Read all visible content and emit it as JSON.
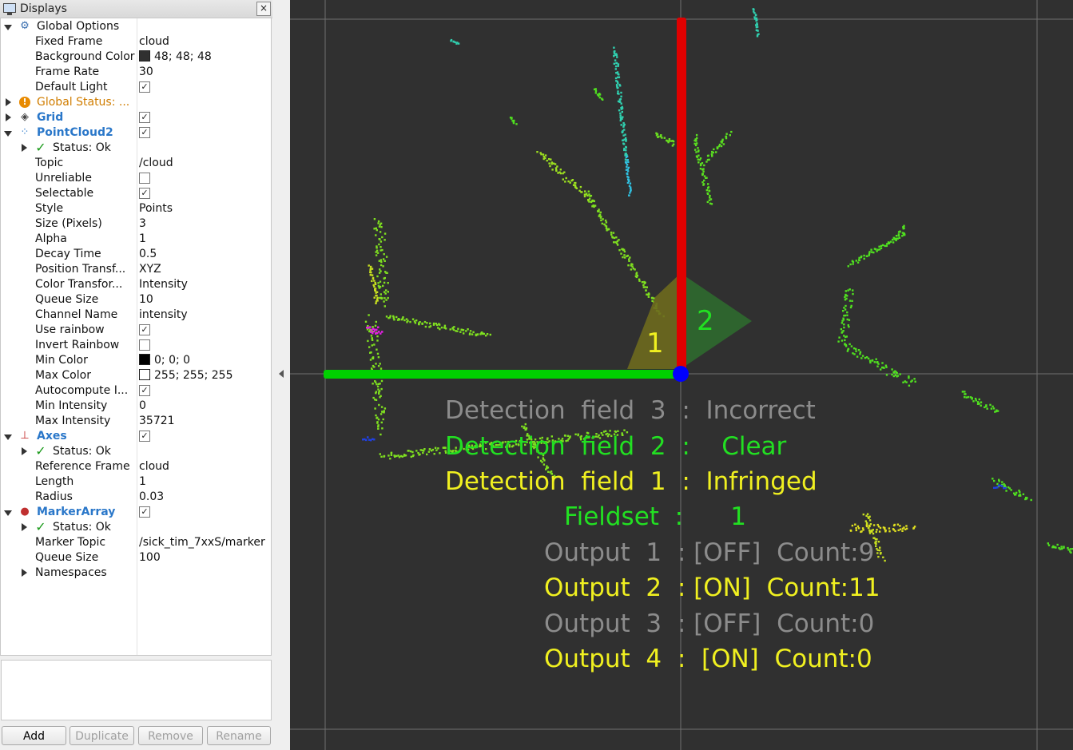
{
  "panel": {
    "title": "Displays",
    "close_glyph": "×",
    "rows": [
      {
        "depth": 0,
        "arrow": "open",
        "icon": "gear-icon",
        "label": "Global Options"
      },
      {
        "depth": 1,
        "label": "Fixed Frame",
        "value": "cloud"
      },
      {
        "depth": 1,
        "label": "Background Color",
        "value": "48; 48; 48",
        "swatch": "#303030"
      },
      {
        "depth": 1,
        "label": "Frame Rate",
        "value": "30"
      },
      {
        "depth": 1,
        "label": "Default Light",
        "check": true
      },
      {
        "depth": 0,
        "arrow": "closed",
        "icon": "warning-icon",
        "label": "Global Status: ...",
        "style": "warn"
      },
      {
        "depth": 0,
        "arrow": "closed",
        "icon": "grid-icon",
        "label": "Grid",
        "style": "blue",
        "check": true
      },
      {
        "depth": 0,
        "arrow": "open",
        "icon": "pointcloud-icon",
        "label": "PointCloud2",
        "style": "blue",
        "check": true
      },
      {
        "depth": 1,
        "arrow": "closed",
        "icon": "checkmark-icon",
        "label": "Status: Ok"
      },
      {
        "depth": 1,
        "label": "Topic",
        "value": "/cloud"
      },
      {
        "depth": 1,
        "label": "Unreliable",
        "check": false
      },
      {
        "depth": 1,
        "label": "Selectable",
        "check": true
      },
      {
        "depth": 1,
        "label": "Style",
        "value": "Points"
      },
      {
        "depth": 1,
        "label": "Size (Pixels)",
        "value": "3"
      },
      {
        "depth": 1,
        "label": "Alpha",
        "value": "1"
      },
      {
        "depth": 1,
        "label": "Decay Time",
        "value": "0.5"
      },
      {
        "depth": 1,
        "label": "Position Transf...",
        "value": "XYZ"
      },
      {
        "depth": 1,
        "label": "Color Transfor...",
        "value": "Intensity"
      },
      {
        "depth": 1,
        "label": "Queue Size",
        "value": "10"
      },
      {
        "depth": 1,
        "label": "Channel Name",
        "value": "intensity"
      },
      {
        "depth": 1,
        "label": "Use rainbow",
        "check": true
      },
      {
        "depth": 1,
        "label": "Invert Rainbow",
        "check": false
      },
      {
        "depth": 1,
        "label": "Min Color",
        "value": "0; 0; 0",
        "swatch": "#000000"
      },
      {
        "depth": 1,
        "label": "Max Color",
        "value": "255; 255; 255",
        "swatch": "#ffffff"
      },
      {
        "depth": 1,
        "label": "Autocompute I...",
        "check": true
      },
      {
        "depth": 1,
        "label": "Min Intensity",
        "value": "0"
      },
      {
        "depth": 1,
        "label": "Max Intensity",
        "value": "35721"
      },
      {
        "depth": 0,
        "arrow": "open",
        "icon": "axes-icon",
        "label": "Axes",
        "style": "blue",
        "check": true
      },
      {
        "depth": 1,
        "arrow": "closed",
        "icon": "checkmark-icon",
        "label": "Status: Ok"
      },
      {
        "depth": 1,
        "label": "Reference Frame",
        "value": "cloud"
      },
      {
        "depth": 1,
        "label": "Length",
        "value": "1"
      },
      {
        "depth": 1,
        "label": "Radius",
        "value": "0.03"
      },
      {
        "depth": 0,
        "arrow": "open",
        "icon": "markerarray-icon",
        "label": "MarkerArray",
        "style": "blue",
        "check": true
      },
      {
        "depth": 1,
        "arrow": "closed",
        "icon": "checkmark-icon",
        "label": "Status: Ok"
      },
      {
        "depth": 1,
        "label": "Marker Topic",
        "value": "/sick_tim_7xxS/marker"
      },
      {
        "depth": 1,
        "label": "Queue Size",
        "value": "100"
      },
      {
        "depth": 1,
        "arrow": "closed",
        "label": "Namespaces"
      }
    ],
    "buttons": [
      {
        "label": "Add",
        "enabled": true
      },
      {
        "label": "Duplicate",
        "enabled": false
      },
      {
        "label": "Remove",
        "enabled": false
      },
      {
        "label": "Rename",
        "enabled": false
      }
    ]
  },
  "viewport": {
    "background": "#303030",
    "field_labels": [
      "1",
      "2"
    ],
    "overlay_lines": [
      {
        "text": "Detection  field  3  :  Incorrect",
        "color": "#8c8c8c"
      },
      {
        "text": "Detection  field  2  :    Clear",
        "color": "#22e022"
      },
      {
        "text": "Detection  field  1  :  Infringed",
        "color": "#f0f020"
      },
      {
        "text": "Fieldset  :      1",
        "color": "#22e022"
      },
      {
        "text": "Output  1  : [OFF]  Count:9",
        "color": "#8c8c8c"
      },
      {
        "text": "Output  2  : [ON]  Count:11",
        "color": "#f0f020"
      },
      {
        "text": "Output  3  : [OFF]  Count:0",
        "color": "#8c8c8c"
      },
      {
        "text": "Output  4  :  [ON]  Count:0",
        "color": "#f0f020"
      }
    ],
    "colors": {
      "x_axis": "#00d000",
      "y_axis": "#e00000",
      "origin": "#0000ff",
      "field1": "#6e6a1e",
      "field2": "#2f6a2f",
      "grid": "#8a8a8a"
    }
  }
}
